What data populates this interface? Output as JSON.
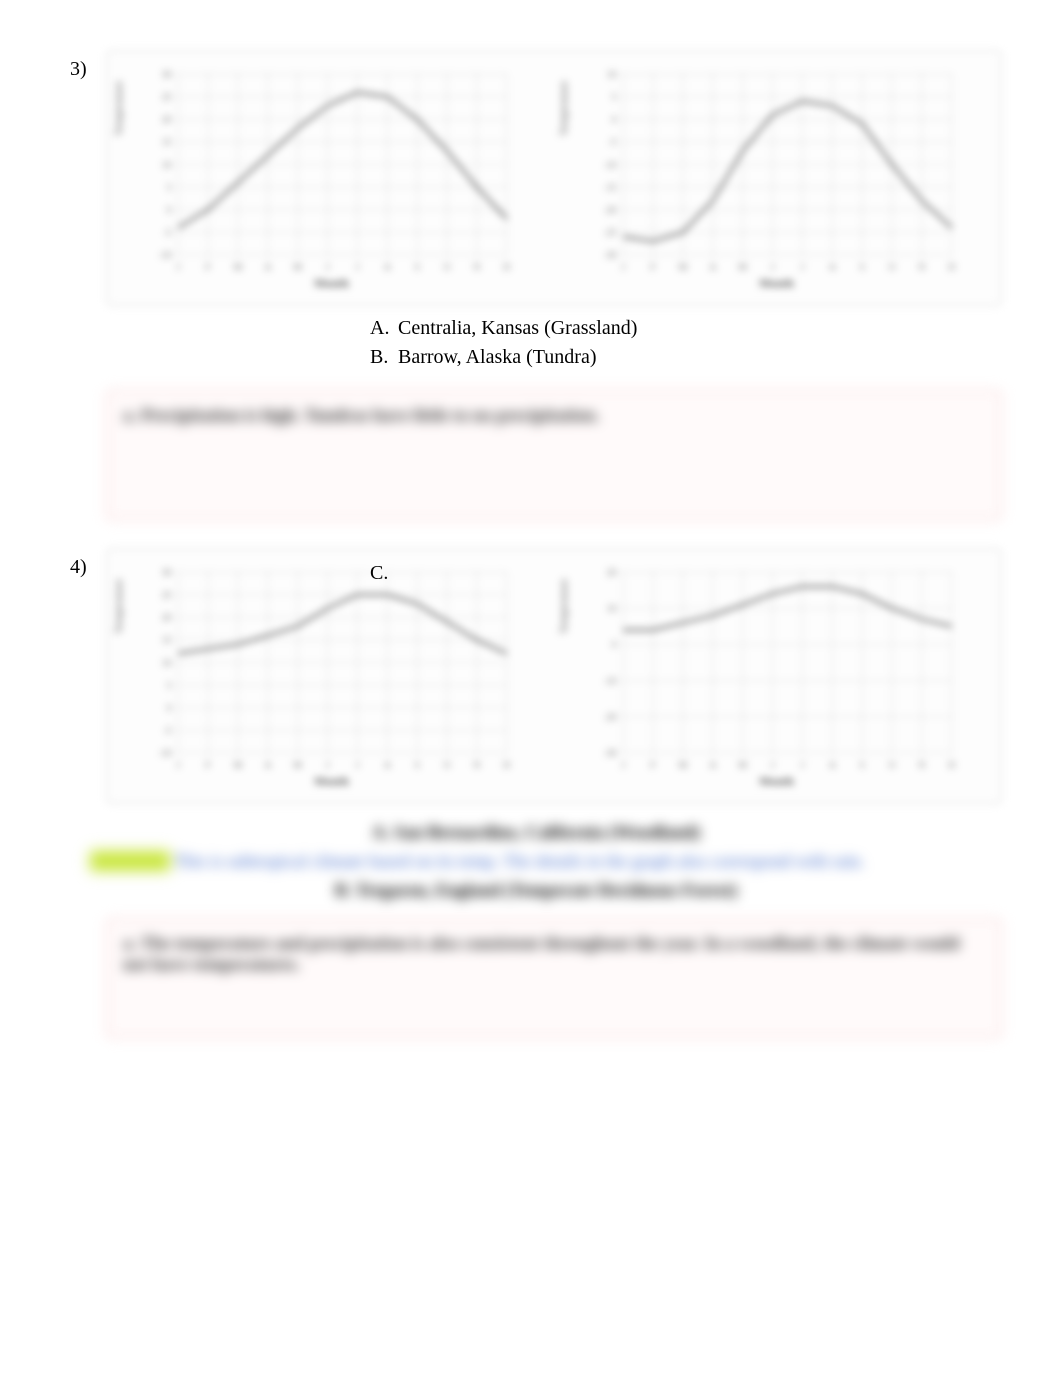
{
  "q3": {
    "number": "3)",
    "answers": {
      "a": {
        "letter": "A.",
        "text": "Centralia, Kansas (Grassland)"
      },
      "b": {
        "letter": "B.",
        "text": "Barrow, Alaska (Tundra)"
      }
    },
    "pink_text": "a. Precipitation is high. Tundras have little to no precipitation.",
    "chart_left": {
      "type": "line",
      "y_label": "Temperature",
      "x_label": "Month",
      "months": [
        "J",
        "F",
        "M",
        "A",
        "M",
        "J",
        "J",
        "A",
        "S",
        "O",
        "N",
        "D"
      ],
      "values": [
        -4,
        0,
        6,
        12,
        18,
        23,
        26,
        25,
        20,
        13,
        5,
        -2
      ],
      "ylim": [
        -10,
        30
      ],
      "ytick_step": 5,
      "line_color": "#555555",
      "grid_color": "#cfcfcf",
      "background_color": "#ffffff",
      "title_fontsize": 11
    },
    "chart_right": {
      "type": "line",
      "y_label": "Temperature",
      "x_label": "Month",
      "months": [
        "J",
        "F",
        "M",
        "A",
        "M",
        "J",
        "J",
        "A",
        "S",
        "O",
        "N",
        "D"
      ],
      "values": [
        -26,
        -27,
        -25,
        -18,
        -7,
        1,
        4,
        3,
        -1,
        -10,
        -18,
        -24
      ],
      "ylim": [
        -30,
        10
      ],
      "ytick_step": 5,
      "line_color": "#555555",
      "grid_color": "#cfcfcf",
      "background_color": "#ffffff",
      "title_fontsize": 11
    }
  },
  "q4": {
    "number": "4)",
    "c_label": "C.",
    "chart_left": {
      "type": "line",
      "y_label": "Temperature",
      "x_label": "Month",
      "months": [
        "J",
        "F",
        "M",
        "A",
        "M",
        "J",
        "J",
        "A",
        "S",
        "O",
        "N",
        "D"
      ],
      "values": [
        12,
        13,
        14,
        16,
        18,
        22,
        25,
        25,
        23,
        19,
        15,
        12
      ],
      "ylim": [
        -10,
        30
      ],
      "ytick_step": 5,
      "line_color": "#555555",
      "grid_color": "#cfcfcf",
      "background_color": "#ffffff"
    },
    "chart_right": {
      "type": "line",
      "y_label": "Temperature",
      "x_label": "Month",
      "months": [
        "J",
        "F",
        "M",
        "A",
        "M",
        "J",
        "J",
        "A",
        "S",
        "O",
        "N",
        "D"
      ],
      "values": [
        4,
        4,
        6,
        8,
        11,
        14,
        16,
        16,
        14,
        10,
        7,
        5
      ],
      "ylim": [
        -30,
        20
      ],
      "ytick_step": 10,
      "line_color": "#555555",
      "grid_color": "#cfcfcf",
      "background_color": "#ffffff"
    },
    "blur_line_1": "A. San Bernardino, California (Woodland)",
    "blur_line_2_blue": "This is subtropical climate based on its temp. The details in the graph also correspond with rain.",
    "blur_line_3": "B. Tregaron, England (Temperate Deciduous Forest)",
    "pink_text": "a. The temperature and precipitation is also consistent throughout the year. In a woodland, the climate would not have temperatures."
  },
  "colors": {
    "border_gray": "#d8d8d8",
    "pink_border": "#f6b9b9",
    "pink_bg": "#fffafa",
    "highlight": "#c8e63a",
    "blue_text": "#3a66c9",
    "text": "#000000"
  }
}
